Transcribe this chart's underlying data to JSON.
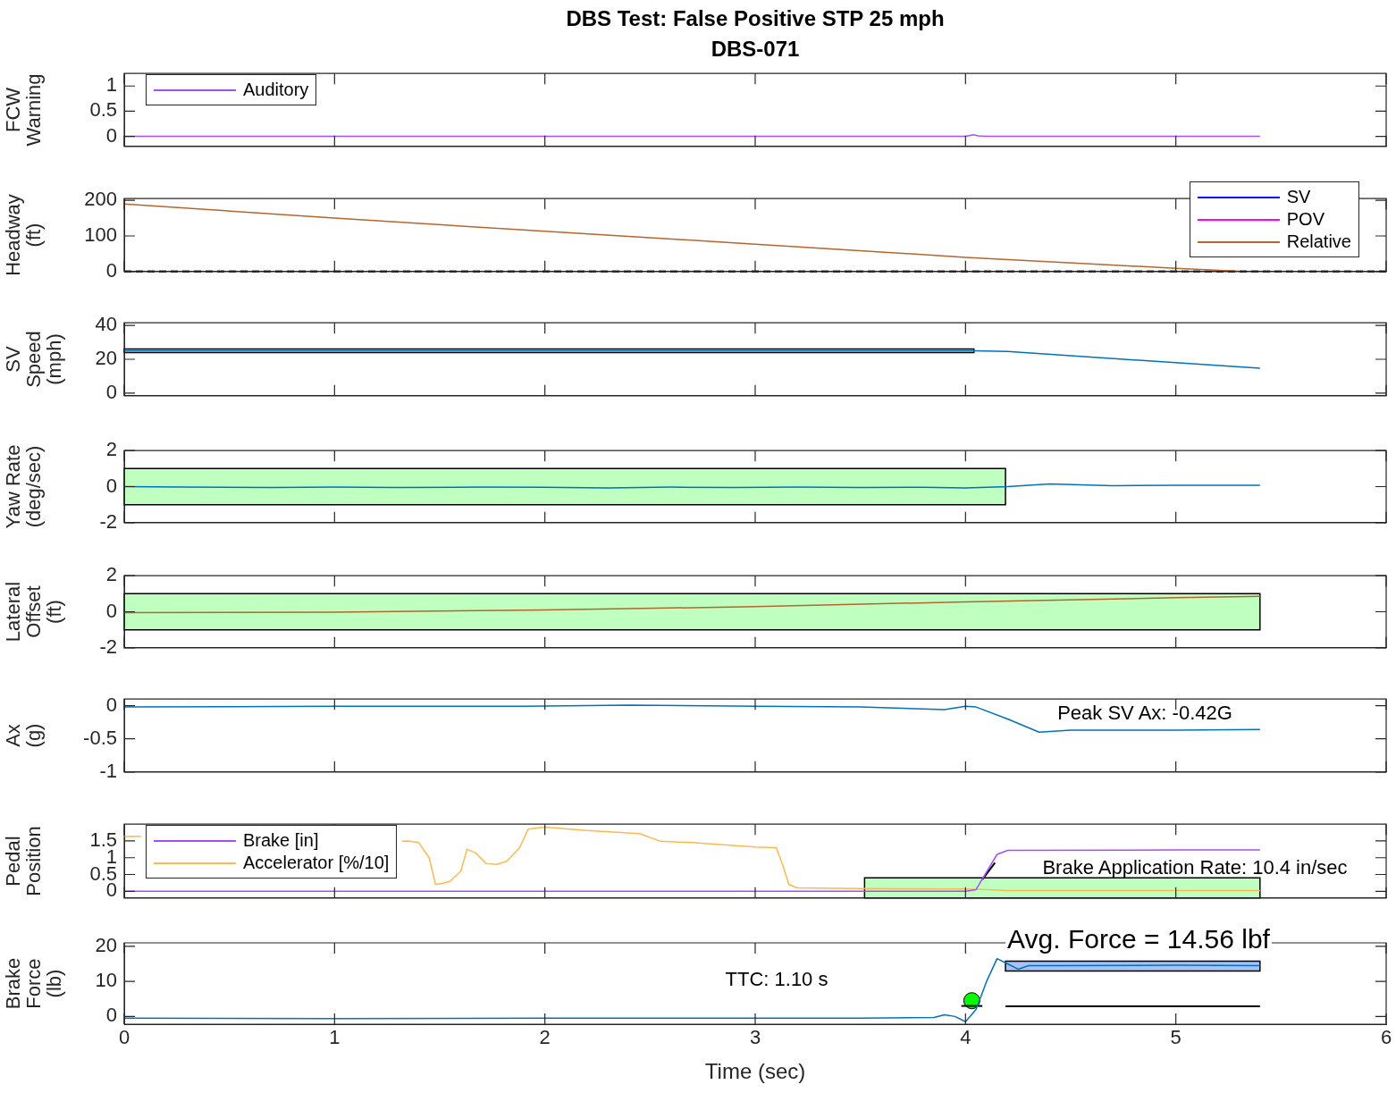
{
  "chart_data": [
    {
      "type": "line",
      "title": "DBS Test: False Positive STP 25 mph",
      "subtitle": "DBS-071",
      "ylabel": "FCW\nWarning",
      "xlim": [
        0,
        6
      ],
      "xticks": [
        0,
        1,
        2,
        3,
        4,
        5,
        6
      ],
      "ylim": [
        -0.2,
        1.25
      ],
      "yticks": [
        0,
        0.5,
        1
      ],
      "tick_labels": "y",
      "legend": "top left",
      "series": [
        {
          "name": "Auditory",
          "color": "#a64dff",
          "x": [
            0,
            0.5,
            1,
            1.5,
            2,
            2.5,
            3,
            3.5,
            4,
            4.04,
            4.06,
            4.1,
            4.5,
            5,
            5.4
          ],
          "values": [
            0,
            0,
            0,
            0,
            0,
            0,
            0,
            0,
            0,
            0.03,
            0.01,
            0,
            0,
            0,
            0
          ]
        }
      ]
    },
    {
      "type": "line",
      "ylabel": "Headway\n(ft)",
      "xlim": [
        0,
        6
      ],
      "xticks": [
        0,
        1,
        2,
        3,
        4,
        5,
        6
      ],
      "ylim": [
        0,
        205
      ],
      "yticks": [
        0,
        100,
        200
      ],
      "tick_labels": "y",
      "legend": "top right",
      "ref_lines": [
        {
          "axis": "y",
          "value": 0,
          "color": "#262626",
          "line_style": "dashed"
        }
      ],
      "series": [
        {
          "name": "SV",
          "color": "#0000ff"
        },
        {
          "name": "POV",
          "color": "#ff00ff"
        },
        {
          "name": "Relative",
          "color": "#b5652d",
          "x": [
            0,
            1,
            2,
            3,
            4,
            5,
            5.3
          ],
          "values": [
            190,
            150,
            113,
            77,
            40,
            9,
            1
          ]
        }
      ]
    },
    {
      "type": "line",
      "ylabel": "SV\nSpeed\n(mph)",
      "xlim": [
        0,
        6
      ],
      "xticks": [
        0,
        1,
        2,
        3,
        4,
        5,
        6
      ],
      "ylim": [
        -1.5,
        41.5
      ],
      "yticks": [
        0,
        20,
        40
      ],
      "tick_labels": "y",
      "series": [
        {
          "color": "#bfffbf",
          "x": [
            0,
            4.04
          ],
          "values": [
            null,
            null
          ],
          "lower": [
            24,
            24
          ],
          "upper": [
            26,
            26
          ]
        },
        {
          "color": "#0072bd",
          "x": [
            0,
            1,
            2,
            3,
            4.04,
            4.2,
            5.4
          ],
          "values": [
            25,
            25,
            25,
            25,
            25,
            24.6,
            14.7
          ]
        }
      ]
    },
    {
      "type": "line",
      "ylabel": "Yaw Rate\n(deg/sec)",
      "xlim": [
        0,
        6
      ],
      "xticks": [
        0,
        1,
        2,
        3,
        4,
        5,
        6
      ],
      "ylim": [
        -2,
        2
      ],
      "yticks": [
        -2,
        0,
        2
      ],
      "tick_labels": "y",
      "series": [
        {
          "color": "#bfffbf",
          "x": [
            0,
            4.19
          ],
          "values": [
            null,
            null
          ],
          "lower": [
            -1,
            -1
          ],
          "upper": [
            1,
            1
          ]
        },
        {
          "color": "#0072bd",
          "x": [
            0,
            0.3,
            0.7,
            1,
            1.3,
            1.7,
            2,
            2.3,
            2.6,
            2.9,
            3.2,
            3.5,
            3.8,
            4,
            4.2,
            4.4,
            4.7,
            5,
            5.4
          ],
          "values": [
            0,
            -0.03,
            -0.05,
            -0.02,
            -0.05,
            -0.03,
            -0.04,
            -0.08,
            -0.03,
            -0.05,
            -0.03,
            -0.05,
            -0.04,
            -0.08,
            0,
            0.15,
            0.05,
            0.07,
            0.07
          ]
        }
      ]
    },
    {
      "type": "line",
      "ylabel": "Lateral\nOffset\n(ft)",
      "xlim": [
        0,
        6
      ],
      "xticks": [
        0,
        1,
        2,
        3,
        4,
        5,
        6
      ],
      "ylim": [
        -2,
        2
      ],
      "yticks": [
        -2,
        0,
        2
      ],
      "tick_labels": "y",
      "series": [
        {
          "color": "#bfffbf",
          "x": [
            0,
            5.4
          ],
          "values": [
            null,
            null
          ],
          "lower": [
            -1,
            -1
          ],
          "upper": [
            1,
            1
          ]
        },
        {
          "color": "#b5652d",
          "x": [
            0,
            1,
            2,
            3,
            4,
            5,
            5.4
          ],
          "values": [
            -0.05,
            -0.02,
            0.1,
            0.28,
            0.55,
            0.78,
            0.85
          ]
        }
      ]
    },
    {
      "type": "line",
      "ylabel": "Ax\n(g)",
      "xlim": [
        0,
        6
      ],
      "xticks": [
        0,
        1,
        2,
        3,
        4,
        5,
        6
      ],
      "ylim": [
        -1,
        0.1
      ],
      "yticks": [
        -1,
        -0.5,
        0
      ],
      "tick_labels": "y",
      "annotations": [
        "Peak SV Ax: -0.42G"
      ],
      "series": [
        {
          "color": "#0072bd",
          "x": [
            0,
            1,
            1.9,
            2.4,
            3,
            3.5,
            3.9,
            4,
            4.05,
            4.2,
            4.35,
            4.5,
            5,
            5.4
          ],
          "values": [
            -0.02,
            -0.01,
            -0.01,
            0.01,
            -0.01,
            -0.02,
            -0.06,
            -0.01,
            -0.02,
            -0.2,
            -0.4,
            -0.37,
            -0.37,
            -0.36
          ]
        }
      ]
    },
    {
      "type": "line",
      "ylabel": "Pedal\nPosition",
      "xlim": [
        0,
        6
      ],
      "xticks": [
        0,
        1,
        2,
        3,
        4,
        5,
        6
      ],
      "ylim": [
        -0.2,
        2
      ],
      "yticks": [
        0,
        0.5,
        1,
        1.5
      ],
      "tick_labels": "y",
      "legend": "top left",
      "annotations": [
        "Brake Application Rate: 10.4 in/sec"
      ],
      "series": [
        {
          "color": "#bfffbf",
          "x": [
            3.52,
            5.4
          ],
          "values": [
            null,
            null
          ],
          "lower": [
            -0.2,
            -0.2
          ],
          "upper": [
            0.4,
            0.4
          ]
        },
        {
          "name": "Brake [in]",
          "color": "#a64dff",
          "x": [
            0,
            1,
            2,
            3,
            4,
            4.05,
            4.15,
            4.2,
            5,
            5.4
          ],
          "values": [
            0,
            0,
            0,
            0,
            0,
            0.05,
            1.1,
            1.22,
            1.23,
            1.23
          ]
        },
        {
          "name": "Accelerator [%/10]",
          "color": "#fdb94d",
          "x": [
            0,
            0.08,
            0.1,
            1.32,
            1.35,
            1.4,
            1.45,
            1.48,
            1.52,
            1.55,
            1.6,
            1.63,
            1.67,
            1.72,
            1.77,
            1.82,
            1.88,
            1.92,
            2,
            2.2,
            2.45,
            2.55,
            2.7,
            3,
            3.1,
            3.13,
            3.16,
            3.2,
            3.5,
            4,
            4.1,
            4.2,
            5.4
          ],
          "values": [
            1.63,
            1.64,
            null,
            1.49,
            1.5,
            1.45,
            1.0,
            0.2,
            0.25,
            0.3,
            0.6,
            1.25,
            1.15,
            0.83,
            0.8,
            0.9,
            1.3,
            1.85,
            1.91,
            1.81,
            1.72,
            1.49,
            1.45,
            1.32,
            1.3,
            0.8,
            0.2,
            0.1,
            0.08,
            0.07,
            0.05,
            0.02,
            0.02
          ]
        },
        {
          "color": "#000000",
          "x": [
            4.08,
            4.14
          ],
          "values": [
            0.35,
            0.85
          ]
        }
      ]
    },
    {
      "type": "line",
      "ylabel": "Brake\nForce\n(lb)",
      "xlabel": "Time (sec)",
      "xlim": [
        0,
        6
      ],
      "xticks": [
        0,
        1,
        2,
        3,
        4,
        5,
        6
      ],
      "ylim": [
        -2.2,
        21
      ],
      "yticks": [
        0,
        10,
        20
      ],
      "annotations": [
        "Avg. Force = 14.56 lbf",
        "TTC: 1.10 s"
      ],
      "series": [
        {
          "color": "#a9c1f5",
          "x": [
            4.19,
            5.4
          ],
          "values": [
            null,
            null
          ],
          "lower": [
            13,
            13
          ],
          "upper": [
            15.8,
            15.8
          ]
        },
        {
          "color": "#0072bd",
          "x": [
            0,
            1,
            2,
            3,
            3.5,
            3.85,
            3.9,
            3.95,
            4,
            4.05,
            4.1,
            4.15,
            4.2,
            4.25,
            4.3,
            4.4,
            5,
            5.4
          ],
          "values": [
            -0.5,
            -0.6,
            -0.5,
            -0.5,
            -0.5,
            -0.3,
            0.5,
            0,
            -1.5,
            2,
            10,
            16.5,
            15,
            13.5,
            14.5,
            14.5,
            14.6,
            14.5
          ]
        },
        {
          "color": "#000000",
          "x": [
            4.19,
            5.4
          ],
          "values": [
            2.9,
            2.9
          ]
        },
        {
          "color": "#000000",
          "x": [
            3.98,
            4.08
          ],
          "values": [
            3,
            3
          ]
        },
        {
          "type": "scatter",
          "marker": "circle",
          "color": "#00ff00",
          "x": [
            4.03
          ],
          "values": [
            4.5
          ]
        }
      ]
    }
  ]
}
